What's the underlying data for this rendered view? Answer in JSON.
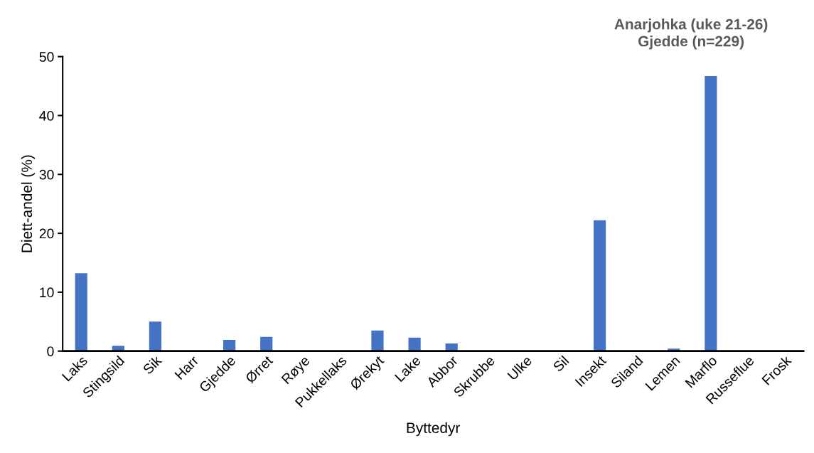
{
  "chart_data": {
    "type": "bar",
    "title": "Anarjohka (uke 21-26)\nGjedde (n=229)",
    "xlabel": "Byttedyr",
    "ylabel": "Diett-andel (%)",
    "categories": [
      "Laks",
      "Stingsild",
      "Sik",
      "Harr",
      "Gjedde",
      "Ørret",
      "Røye",
      "Pukkellaks",
      "Ørekyt",
      "Lake",
      "Abbor",
      "Skrubbe",
      "Ulke",
      "Sil",
      "Insekt",
      "Siland",
      "Lemen",
      "Marflo",
      "Russeflue",
      "Frosk"
    ],
    "values": [
      13.2,
      0.9,
      5.0,
      0,
      1.9,
      2.4,
      0,
      0,
      3.5,
      2.3,
      1.3,
      0,
      0,
      0,
      22.2,
      0,
      0.4,
      46.7,
      0,
      0
    ],
    "color": "#4472c4",
    "ylim": [
      0,
      50
    ],
    "yticks": [
      0,
      10,
      20,
      30,
      40,
      50
    ],
    "grid": false,
    "legend": false
  }
}
